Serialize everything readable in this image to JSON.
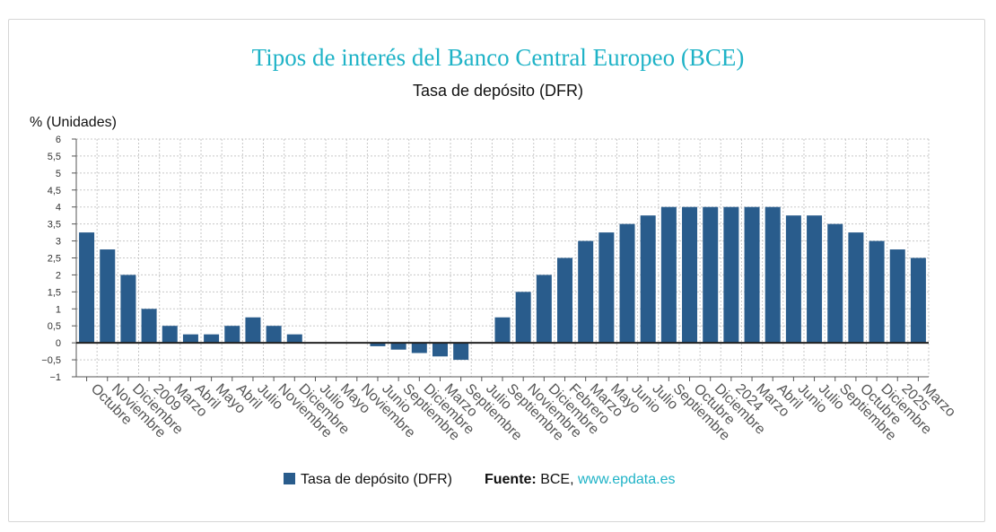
{
  "title": "Tipos de interés del Banco Central Europeo (BCE)",
  "subtitle": "Tasa de depósito (DFR)",
  "units_label": "% (Unidades)",
  "legend": {
    "series_label": "Tasa de depósito (DFR)",
    "source_prefix": "Fuente:",
    "source_name": " BCE, ",
    "source_link": "www.epdata.es"
  },
  "colors": {
    "bar": "#295c8c",
    "title": "#1fb3c7",
    "link": "#1fb3c7",
    "grid": "#c8c8c8",
    "zero_line": "#222222"
  },
  "chart_data": {
    "type": "bar",
    "title": "Tipos de interés del Banco Central Europeo (BCE)",
    "subtitle": "Tasa de depósito (DFR)",
    "ylabel": "% (Unidades)",
    "xlabel": "",
    "ylim": [
      -1,
      6
    ],
    "yticks": [
      "−1",
      "−0,5",
      "0",
      "0,5",
      "1",
      "1,5",
      "2",
      "2,5",
      "3",
      "3,5",
      "4",
      "4,5",
      "5",
      "5,5",
      "6"
    ],
    "grid": true,
    "legend_position": "bottom",
    "categories": [
      "Octubre",
      "Noviembre",
      "Diciembre",
      "2009",
      "Marzo",
      "Abril",
      "Mayo",
      "Abril",
      "Julio",
      "Noviembre",
      "Diciembre",
      "Julio",
      "Mayo",
      "Noviembre",
      "Junio",
      "Septiembre",
      "Diciembre",
      "Marzo",
      "Septiembre",
      "Julio",
      "Septiembre",
      "Noviembre",
      "Diciembre",
      "Febrero",
      "Marzo",
      "Mayo",
      "Junio",
      "Julio",
      "Septiembre",
      "Octubre",
      "Diciembre",
      "2024",
      "Marzo",
      "Abril",
      "Junio",
      "Julio",
      "Septiembre",
      "Octubre",
      "Diciembre",
      "2025",
      "Marzo"
    ],
    "series": [
      {
        "name": "Tasa de depósito (DFR)",
        "values": [
          3.25,
          2.75,
          2.0,
          1.0,
          0.5,
          0.25,
          0.25,
          0.5,
          0.75,
          0.5,
          0.25,
          0.0,
          0.0,
          0.0,
          -0.1,
          -0.2,
          -0.3,
          -0.4,
          -0.5,
          0.0,
          0.75,
          1.5,
          2.0,
          2.5,
          3.0,
          3.25,
          3.5,
          3.75,
          4.0,
          4.0,
          4.0,
          4.0,
          4.0,
          4.0,
          3.75,
          3.75,
          3.5,
          3.25,
          3.0,
          2.75,
          2.5
        ]
      }
    ]
  }
}
